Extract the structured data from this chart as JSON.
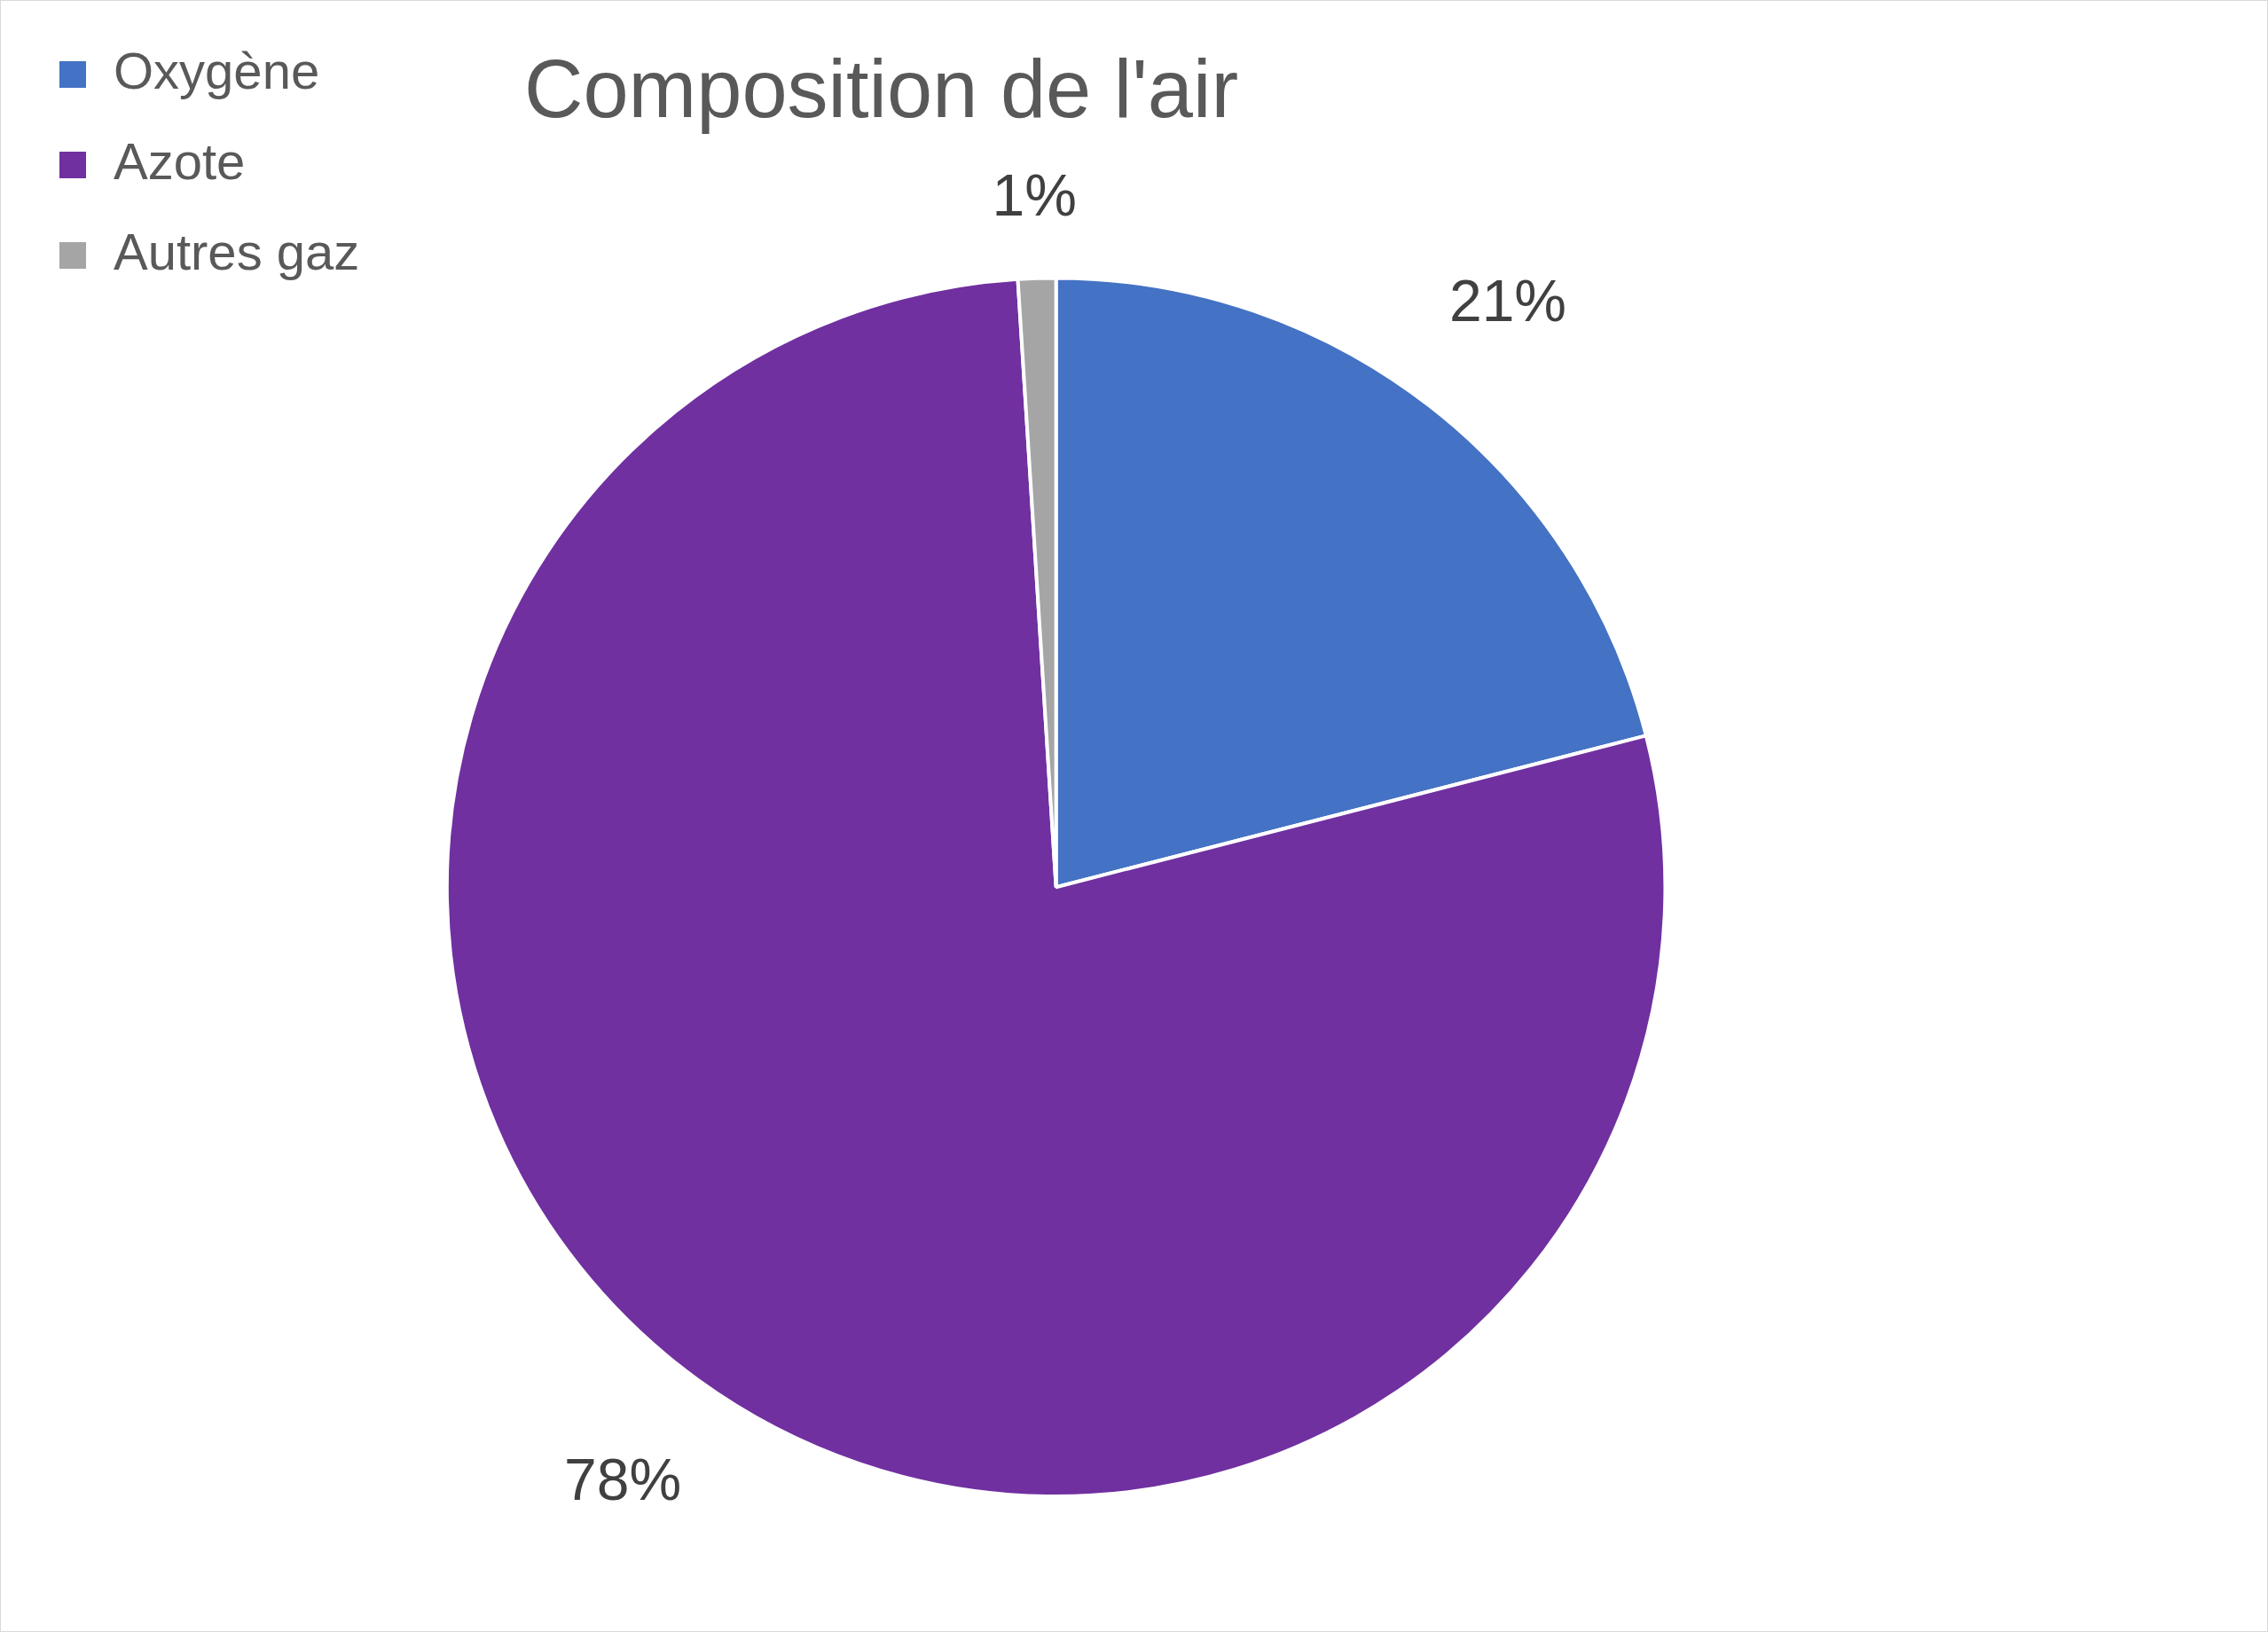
{
  "chart_data": {
    "type": "pie",
    "title": "Composition de l'air",
    "categories": [
      "Oxygène",
      "Azote",
      "Autres gaz"
    ],
    "values": [
      21,
      78,
      1
    ],
    "colors": [
      "#4472c4",
      "#7030a0",
      "#a5a5a5"
    ],
    "value_labels": [
      "21%",
      "78%",
      "1%"
    ],
    "legend": "top left"
  }
}
